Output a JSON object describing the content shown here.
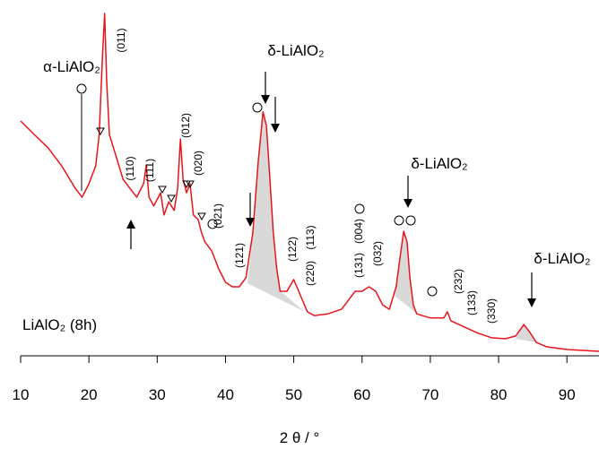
{
  "chart_data": {
    "type": "line",
    "xlabel": "2 θ / °",
    "x": [
      10,
      12,
      14,
      16,
      18,
      19,
      20,
      21,
      21.5,
      22,
      22.3,
      22.6,
      23,
      24,
      25,
      26,
      27,
      28,
      28.4,
      28.8,
      29.5,
      30.5,
      31,
      31.7,
      32.5,
      33,
      33.4,
      33.8,
      34.3,
      34.8,
      35.3,
      36,
      36.5,
      37,
      38,
      39,
      40,
      41,
      42,
      43,
      44,
      44.8,
      45.5,
      46,
      46.5,
      47,
      47.5,
      48,
      49,
      50,
      51,
      52,
      53,
      55,
      57,
      58,
      59,
      60,
      61,
      62,
      63,
      64,
      65,
      65.6,
      66.1,
      66.6,
      67,
      67.5,
      68,
      70,
      72,
      72.5,
      73,
      75,
      77,
      79,
      81,
      82.5,
      83.7,
      84.5,
      85.5,
      87,
      90,
      94.7
    ],
    "series": [
      {
        "color": "#e8141b",
        "values": [
          67.7,
          63.8,
          60,
          54.8,
          48.3,
          45.7,
          49.6,
          54.8,
          63.8,
          87,
          98.7,
          79,
          63.8,
          57.4,
          50.9,
          48.3,
          45.7,
          49.6,
          54.8,
          45.7,
          43.2,
          47,
          40.6,
          44.4,
          41.9,
          48.3,
          62.5,
          50.9,
          47,
          49.6,
          40.6,
          39.3,
          35.4,
          32.8,
          30.2,
          25.1,
          21.2,
          19.9,
          19.9,
          22.5,
          35.4,
          56.1,
          70.3,
          66.4,
          50.9,
          35.4,
          25.1,
          18.6,
          18.6,
          22,
          17.3,
          12.7,
          11.6,
          12.1,
          13.4,
          16,
          18.6,
          18.6,
          19.9,
          18.6,
          14.7,
          13.4,
          19.9,
          28.9,
          35.9,
          32.8,
          22.5,
          14.7,
          12.1,
          10.9,
          10.9,
          12.7,
          10.1,
          8.3,
          6.5,
          5.2,
          4.9,
          5.7,
          9,
          7,
          3.9,
          2.6,
          1.8,
          1.3
        ]
      }
    ],
    "xlim": [
      10,
      94.7
    ],
    "ylim": [
      0,
      100
    ],
    "xticks": [
      10,
      20,
      30,
      40,
      50,
      60,
      70,
      80,
      90
    ],
    "annotations": [
      "α-LiAlO₂",
      "δ-LiAlO₂",
      "δ-LiAlO₂",
      "δ-LiAlO₂",
      "LiAlO₂ (8h)",
      "(011)",
      "(110)",
      "(111)",
      "(012)",
      "(020)",
      "(021)",
      "(121)",
      "(122)",
      "(220)",
      "(113)",
      "(131)",
      "(004)",
      "(032)",
      "(232)",
      "(133)",
      "(330)"
    ]
  }
}
